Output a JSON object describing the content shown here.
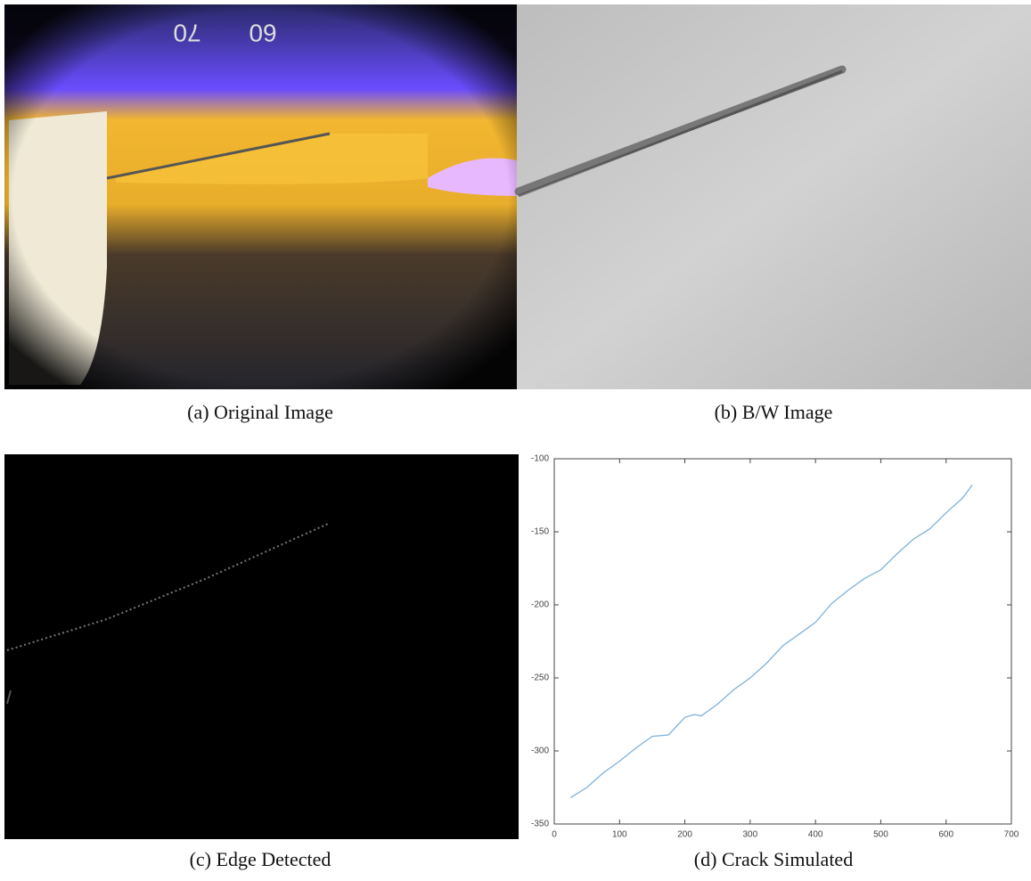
{
  "panels": [
    {
      "caption": "(a) Original Image",
      "photo_text": [
        "70",
        "60"
      ]
    },
    {
      "caption": "(b) B/W Image"
    },
    {
      "caption": "(c) Edge Detected"
    },
    {
      "caption": "(d) Crack Simulated"
    }
  ],
  "chart_data": {
    "type": "line",
    "x": [
      25,
      50,
      75,
      100,
      125,
      150,
      175,
      200,
      215,
      225,
      250,
      275,
      300,
      325,
      350,
      375,
      400,
      425,
      450,
      475,
      500,
      525,
      550,
      575,
      600,
      625,
      640
    ],
    "values": [
      -332,
      -325,
      -315,
      -307,
      -298,
      -290,
      -289,
      -277,
      -275,
      -276,
      -268,
      -258,
      -250,
      -240,
      -228,
      -220,
      -212,
      -199,
      -190,
      -182,
      -176,
      -165,
      -155,
      -148,
      -137,
      -127,
      -118
    ],
    "color": "#7fb2d9",
    "xlim": [
      0,
      700
    ],
    "xticks": [
      0,
      100,
      200,
      300,
      400,
      500,
      600,
      700
    ],
    "ylim": [
      -350,
      -100
    ],
    "yticks": [
      -350,
      -300,
      -250,
      -200,
      -150,
      -100
    ]
  }
}
